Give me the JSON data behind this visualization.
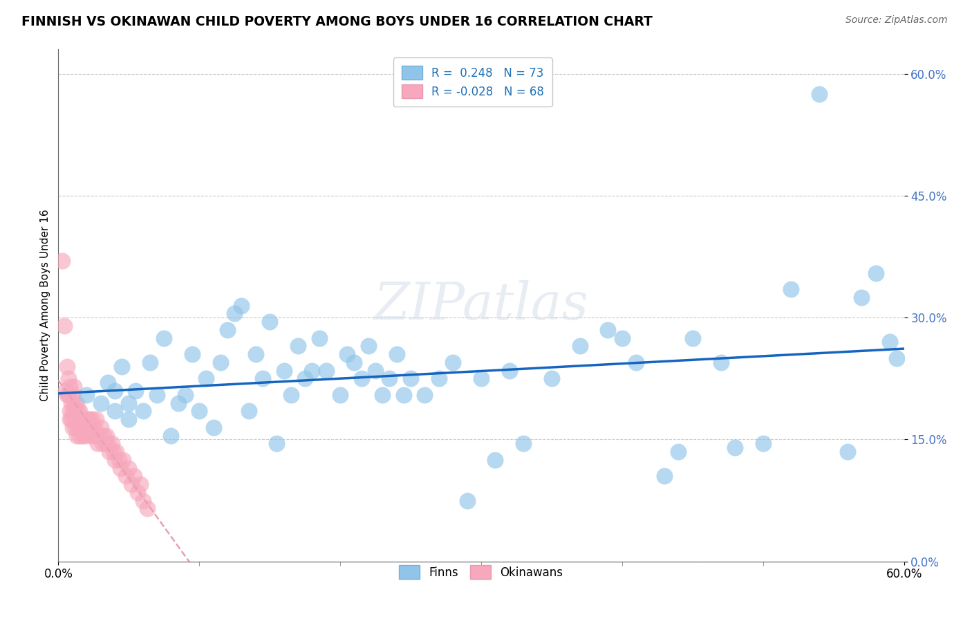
{
  "title": "FINNISH VS OKINAWAN CHILD POVERTY AMONG BOYS UNDER 16 CORRELATION CHART",
  "source": "Source: ZipAtlas.com",
  "ylabel": "Child Poverty Among Boys Under 16",
  "xlim": [
    0.0,
    0.6
  ],
  "ylim": [
    0.0,
    0.63
  ],
  "yticks": [
    0.0,
    0.15,
    0.3,
    0.45,
    0.6
  ],
  "ytick_labels": [
    "0.0%",
    "15.0%",
    "30.0%",
    "45.0%",
    "60.0%"
  ],
  "finn_color": "#90c4e8",
  "okin_color": "#f7a8bc",
  "finn_line_color": "#1565c0",
  "okin_line_color": "#e8a0b4",
  "watermark": "ZIPatlas",
  "finn_scatter_x": [
    0.02,
    0.03,
    0.035,
    0.04,
    0.04,
    0.045,
    0.05,
    0.05,
    0.055,
    0.06,
    0.065,
    0.07,
    0.075,
    0.08,
    0.085,
    0.09,
    0.095,
    0.1,
    0.105,
    0.11,
    0.115,
    0.12,
    0.125,
    0.13,
    0.135,
    0.14,
    0.145,
    0.15,
    0.155,
    0.16,
    0.165,
    0.17,
    0.175,
    0.18,
    0.185,
    0.19,
    0.2,
    0.205,
    0.21,
    0.215,
    0.22,
    0.225,
    0.23,
    0.235,
    0.24,
    0.245,
    0.25,
    0.26,
    0.27,
    0.28,
    0.29,
    0.3,
    0.31,
    0.32,
    0.33,
    0.35,
    0.37,
    0.39,
    0.41,
    0.43,
    0.45,
    0.47,
    0.5,
    0.52,
    0.54,
    0.56,
    0.57,
    0.58,
    0.59,
    0.595,
    0.4,
    0.44,
    0.48
  ],
  "finn_scatter_y": [
    0.205,
    0.195,
    0.22,
    0.185,
    0.21,
    0.24,
    0.175,
    0.195,
    0.21,
    0.185,
    0.245,
    0.205,
    0.275,
    0.155,
    0.195,
    0.205,
    0.255,
    0.185,
    0.225,
    0.165,
    0.245,
    0.285,
    0.305,
    0.315,
    0.185,
    0.255,
    0.225,
    0.295,
    0.145,
    0.235,
    0.205,
    0.265,
    0.225,
    0.235,
    0.275,
    0.235,
    0.205,
    0.255,
    0.245,
    0.225,
    0.265,
    0.235,
    0.205,
    0.225,
    0.255,
    0.205,
    0.225,
    0.205,
    0.225,
    0.245,
    0.075,
    0.225,
    0.125,
    0.235,
    0.145,
    0.225,
    0.265,
    0.285,
    0.245,
    0.105,
    0.275,
    0.245,
    0.145,
    0.335,
    0.575,
    0.135,
    0.325,
    0.355,
    0.27,
    0.25,
    0.275,
    0.135,
    0.14
  ],
  "okin_scatter_x": [
    0.003,
    0.004,
    0.005,
    0.006,
    0.006,
    0.007,
    0.007,
    0.008,
    0.008,
    0.008,
    0.009,
    0.009,
    0.01,
    0.01,
    0.01,
    0.011,
    0.011,
    0.011,
    0.012,
    0.012,
    0.013,
    0.013,
    0.013,
    0.014,
    0.014,
    0.015,
    0.015,
    0.016,
    0.016,
    0.017,
    0.018,
    0.018,
    0.019,
    0.02,
    0.021,
    0.021,
    0.022,
    0.022,
    0.023,
    0.024,
    0.024,
    0.025,
    0.026,
    0.027,
    0.028,
    0.029,
    0.03,
    0.031,
    0.032,
    0.033,
    0.034,
    0.035,
    0.036,
    0.038,
    0.039,
    0.04,
    0.041,
    0.043,
    0.044,
    0.046,
    0.048,
    0.05,
    0.052,
    0.054,
    0.056,
    0.058,
    0.06,
    0.063
  ],
  "okin_scatter_y": [
    0.37,
    0.29,
    0.21,
    0.205,
    0.24,
    0.225,
    0.205,
    0.215,
    0.175,
    0.185,
    0.175,
    0.195,
    0.165,
    0.185,
    0.205,
    0.175,
    0.195,
    0.215,
    0.165,
    0.185,
    0.155,
    0.175,
    0.195,
    0.165,
    0.185,
    0.155,
    0.185,
    0.165,
    0.175,
    0.155,
    0.165,
    0.175,
    0.155,
    0.165,
    0.175,
    0.165,
    0.175,
    0.165,
    0.155,
    0.165,
    0.175,
    0.155,
    0.165,
    0.175,
    0.145,
    0.155,
    0.165,
    0.145,
    0.155,
    0.145,
    0.155,
    0.145,
    0.135,
    0.145,
    0.135,
    0.125,
    0.135,
    0.125,
    0.115,
    0.125,
    0.105,
    0.115,
    0.095,
    0.105,
    0.085,
    0.095,
    0.075,
    0.065
  ]
}
